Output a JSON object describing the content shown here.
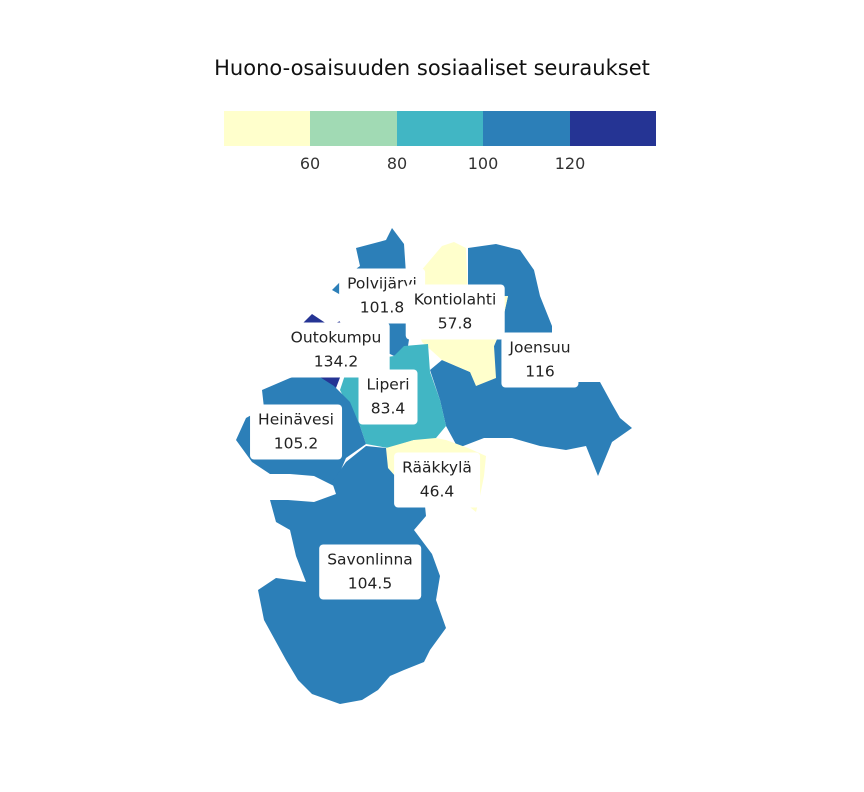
{
  "title": "Huono-osaisuuden sosiaaliset seuraukset",
  "legend": {
    "colors": [
      "#ffffcc",
      "#a1dab4",
      "#41b6c4",
      "#2c7fb8",
      "#253494"
    ],
    "ticks": [
      "60",
      "80",
      "100",
      "120"
    ]
  },
  "regions": [
    {
      "name": "Polvijärvi",
      "value": "101.8",
      "color": "#2c7fb8"
    },
    {
      "name": "Kontiolahti",
      "value": "57.8",
      "color": "#ffffcc"
    },
    {
      "name": "Joensuu",
      "value": "116",
      "color": "#2c7fb8"
    },
    {
      "name": "Outokumpu",
      "value": "134.2",
      "color": "#253494"
    },
    {
      "name": "Liperi",
      "value": "83.4",
      "color": "#41b6c4"
    },
    {
      "name": "Heinävesi",
      "value": "105.2",
      "color": "#2c7fb8"
    },
    {
      "name": "Rääkkylä",
      "value": "46.4",
      "color": "#ffffcc"
    },
    {
      "name": "Savonlinna",
      "value": "104.5",
      "color": "#2c7fb8"
    }
  ]
}
